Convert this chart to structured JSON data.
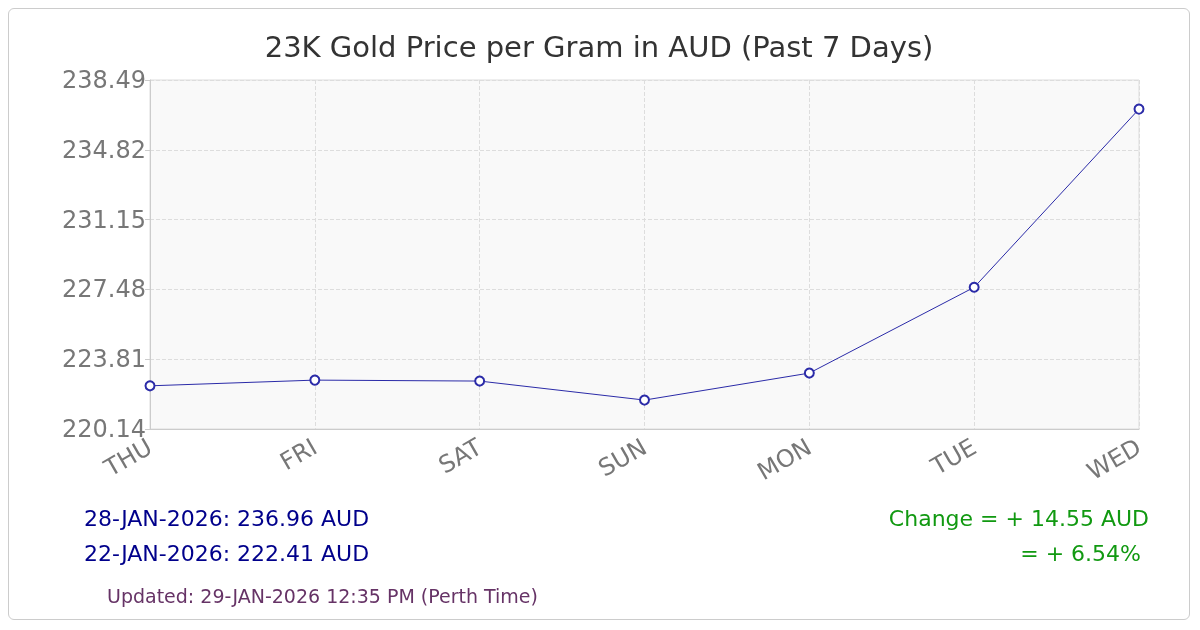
{
  "chart_data": {
    "type": "line",
    "title": "23K Gold Price per Gram in AUD (Past 7 Days)",
    "categories": [
      "THU",
      "FRI",
      "SAT",
      "SUN",
      "MON",
      "TUE",
      "WED"
    ],
    "series": [
      {
        "color": "#2b2ba8",
        "values": [
          222.41,
          222.71,
          222.66,
          221.66,
          223.08,
          227.59,
          236.96
        ]
      }
    ],
    "ylim": [
      220.14,
      238.49
    ],
    "yticks": [
      220.14,
      223.81,
      227.48,
      231.15,
      234.82,
      238.49
    ],
    "grid": true,
    "marker": "circle",
    "line_style": "solid",
    "annotations": [
      "28-JAN-2026: 236.96 AUD",
      "22-JAN-2026: 222.41 AUD",
      "Change = + 14.55 AUD",
      "= + 6.54%",
      "Updated: 29-JAN-2026 12:35 PM (Perth Time)"
    ]
  }
}
